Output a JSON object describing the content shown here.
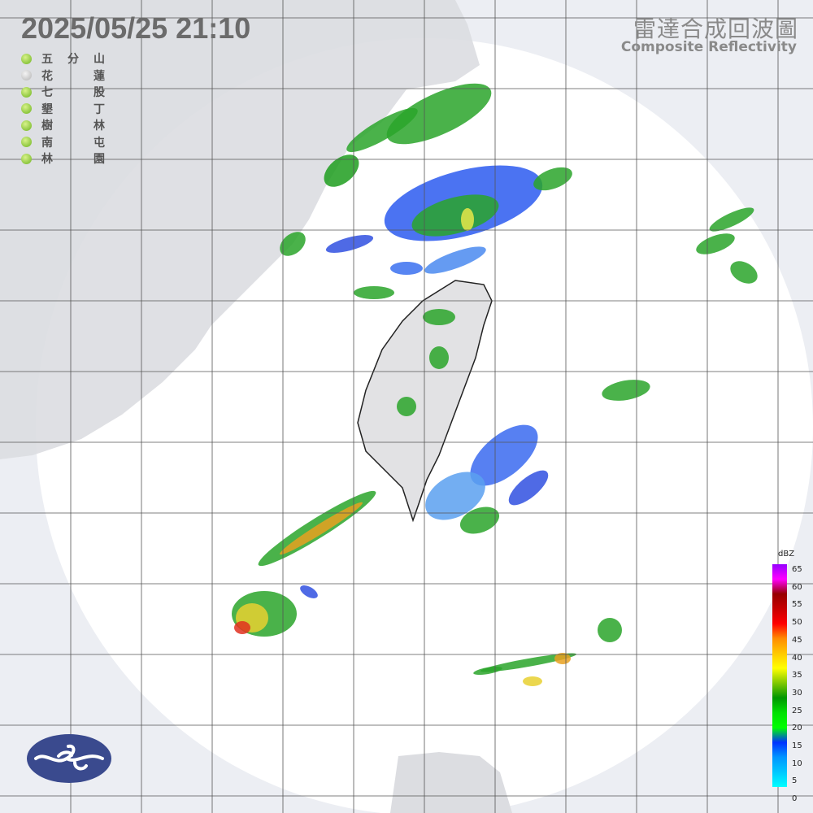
{
  "header": {
    "timestamp": "2025/05/25  21:10",
    "title_zh": "雷達合成回波圖",
    "title_en": "Composite Reflectivity"
  },
  "stations": [
    {
      "left": "五",
      "mid": "分",
      "right": "山",
      "status": "online"
    },
    {
      "left": "花",
      "mid": "",
      "right": "蓮",
      "status": "offline"
    },
    {
      "left": "七",
      "mid": "",
      "right": "股",
      "status": "online"
    },
    {
      "left": "墾",
      "mid": "",
      "right": "丁",
      "status": "online"
    },
    {
      "left": "樹",
      "mid": "",
      "right": "林",
      "status": "online"
    },
    {
      "left": "南",
      "mid": "",
      "right": "屯",
      "status": "online"
    },
    {
      "left": "林",
      "mid": "",
      "right": "園",
      "status": "online"
    }
  ],
  "legend": {
    "unit": "dBZ",
    "ticks": [
      "65",
      "60",
      "55",
      "50",
      "45",
      "40",
      "35",
      "30",
      "25",
      "20",
      "15",
      "10",
      "5",
      "0"
    ],
    "colors": [
      "#00ffff",
      "#00c8ff",
      "#0096ff",
      "#0032ff",
      "#00ff00",
      "#00e000",
      "#009600",
      "#80c800",
      "#ffff00",
      "#ffc800",
      "#ff8c00",
      "#ff0000",
      "#c80000",
      "#960000",
      "#ff00ff",
      "#9600ff"
    ]
  },
  "colors": {
    "background": "#eceef3",
    "radar_area": "#ffffff",
    "land": "#dcdde1",
    "grid": "#555555",
    "logo": "#3a4a8e"
  }
}
